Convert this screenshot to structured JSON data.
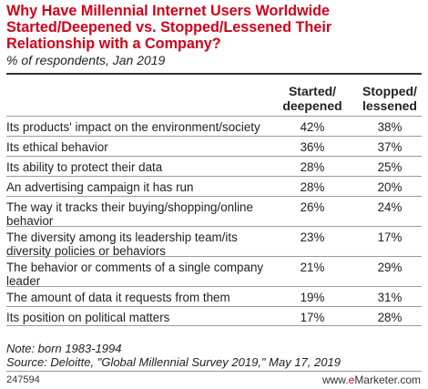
{
  "header": {
    "title": "Why Have Millennial Internet Users Worldwide Started/Deepened vs. Stopped/Lessened Their Relationship with a Company?",
    "subtitle": "% of respondents, Jan 2019"
  },
  "chart_data": {
    "type": "table",
    "columns": [
      "Started/ deepened",
      "Stopped/ lessened"
    ],
    "rows": [
      {
        "label": "Its products' impact on the environment/society",
        "values": [
          "42%",
          "38%"
        ]
      },
      {
        "label": "Its ethical behavior",
        "values": [
          "36%",
          "37%"
        ]
      },
      {
        "label": "Its ability to protect their data",
        "values": [
          "28%",
          "25%"
        ]
      },
      {
        "label": "An advertising campaign it has run",
        "values": [
          "28%",
          "20%"
        ]
      },
      {
        "label": "The way it tracks their buying/shopping/online behavior",
        "values": [
          "26%",
          "24%"
        ]
      },
      {
        "label": "The diversity among its leadership team/its diversity policies or behaviors",
        "values": [
          "23%",
          "17%"
        ]
      },
      {
        "label": "The behavior or comments of a single company leader",
        "values": [
          "21%",
          "29%"
        ]
      },
      {
        "label": "The amount of data it requests from them",
        "values": [
          "19%",
          "31%"
        ]
      },
      {
        "label": "Its position on political matters",
        "values": [
          "17%",
          "28%"
        ]
      }
    ]
  },
  "footer": {
    "note": "Note: born 1983-1994",
    "source": "Source: Deloitte, \"Global Millennial Survey 2019,\" May 17, 2019",
    "id": "247594",
    "brand_prefix": "www.",
    "brand_e": "e",
    "brand_suffix": "Marketer.com"
  },
  "colors": {
    "title": "#d0021b",
    "rule": "#9a9a9a"
  }
}
